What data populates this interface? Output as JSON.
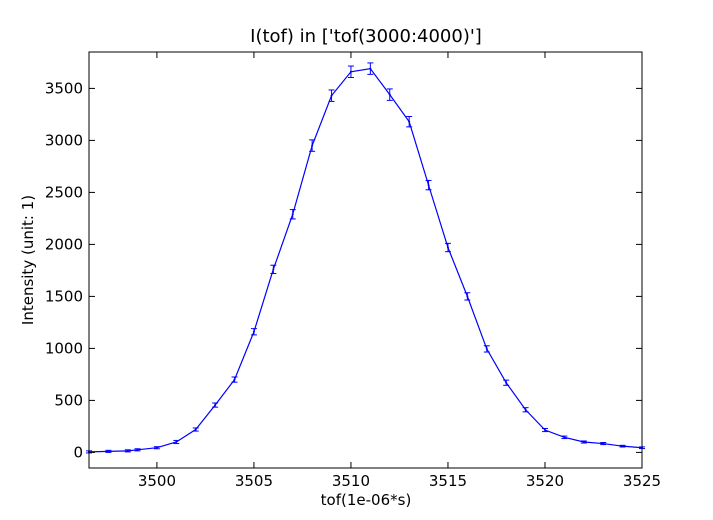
{
  "chart_data": {
    "type": "line",
    "title": "I(tof) in ['tof(3000:4000)']",
    "xlabel": "tof(1e-06*s)",
    "ylabel": "Intensity (unit: 1)",
    "xlim": [
      3496.5,
      3525
    ],
    "ylim": [
      -150,
      3850
    ],
    "xticks": [
      3500,
      3505,
      3510,
      3515,
      3520,
      3525
    ],
    "yticks": [
      0,
      500,
      1000,
      1500,
      2000,
      2500,
      3000,
      3500
    ],
    "grid": false,
    "legend": "none",
    "line_color": "#0000ff",
    "series": [
      {
        "x": [
          3496.5,
          3497.5,
          3498.5,
          3499,
          3500,
          3501,
          3502,
          3503,
          3504,
          3505,
          3506,
          3507,
          3508,
          3509,
          3510,
          3511,
          3512,
          3513,
          3514,
          3515,
          3516,
          3517,
          3518,
          3519,
          3520,
          3521,
          3522,
          3523,
          3524,
          3525
        ],
        "y": [
          5,
          10,
          15,
          25,
          45,
          100,
          220,
          455,
          700,
          1160,
          1760,
          2290,
          2950,
          3430,
          3660,
          3690,
          3440,
          3180,
          2570,
          1970,
          1500,
          995,
          670,
          410,
          215,
          145,
          100,
          85,
          60,
          45
        ],
        "err": [
          10,
          10,
          10,
          10,
          10,
          15,
          15,
          20,
          25,
          30,
          40,
          45,
          55,
          55,
          55,
          55,
          55,
          50,
          45,
          40,
          35,
          30,
          25,
          20,
          15,
          12,
          10,
          10,
          8,
          8
        ]
      }
    ]
  }
}
